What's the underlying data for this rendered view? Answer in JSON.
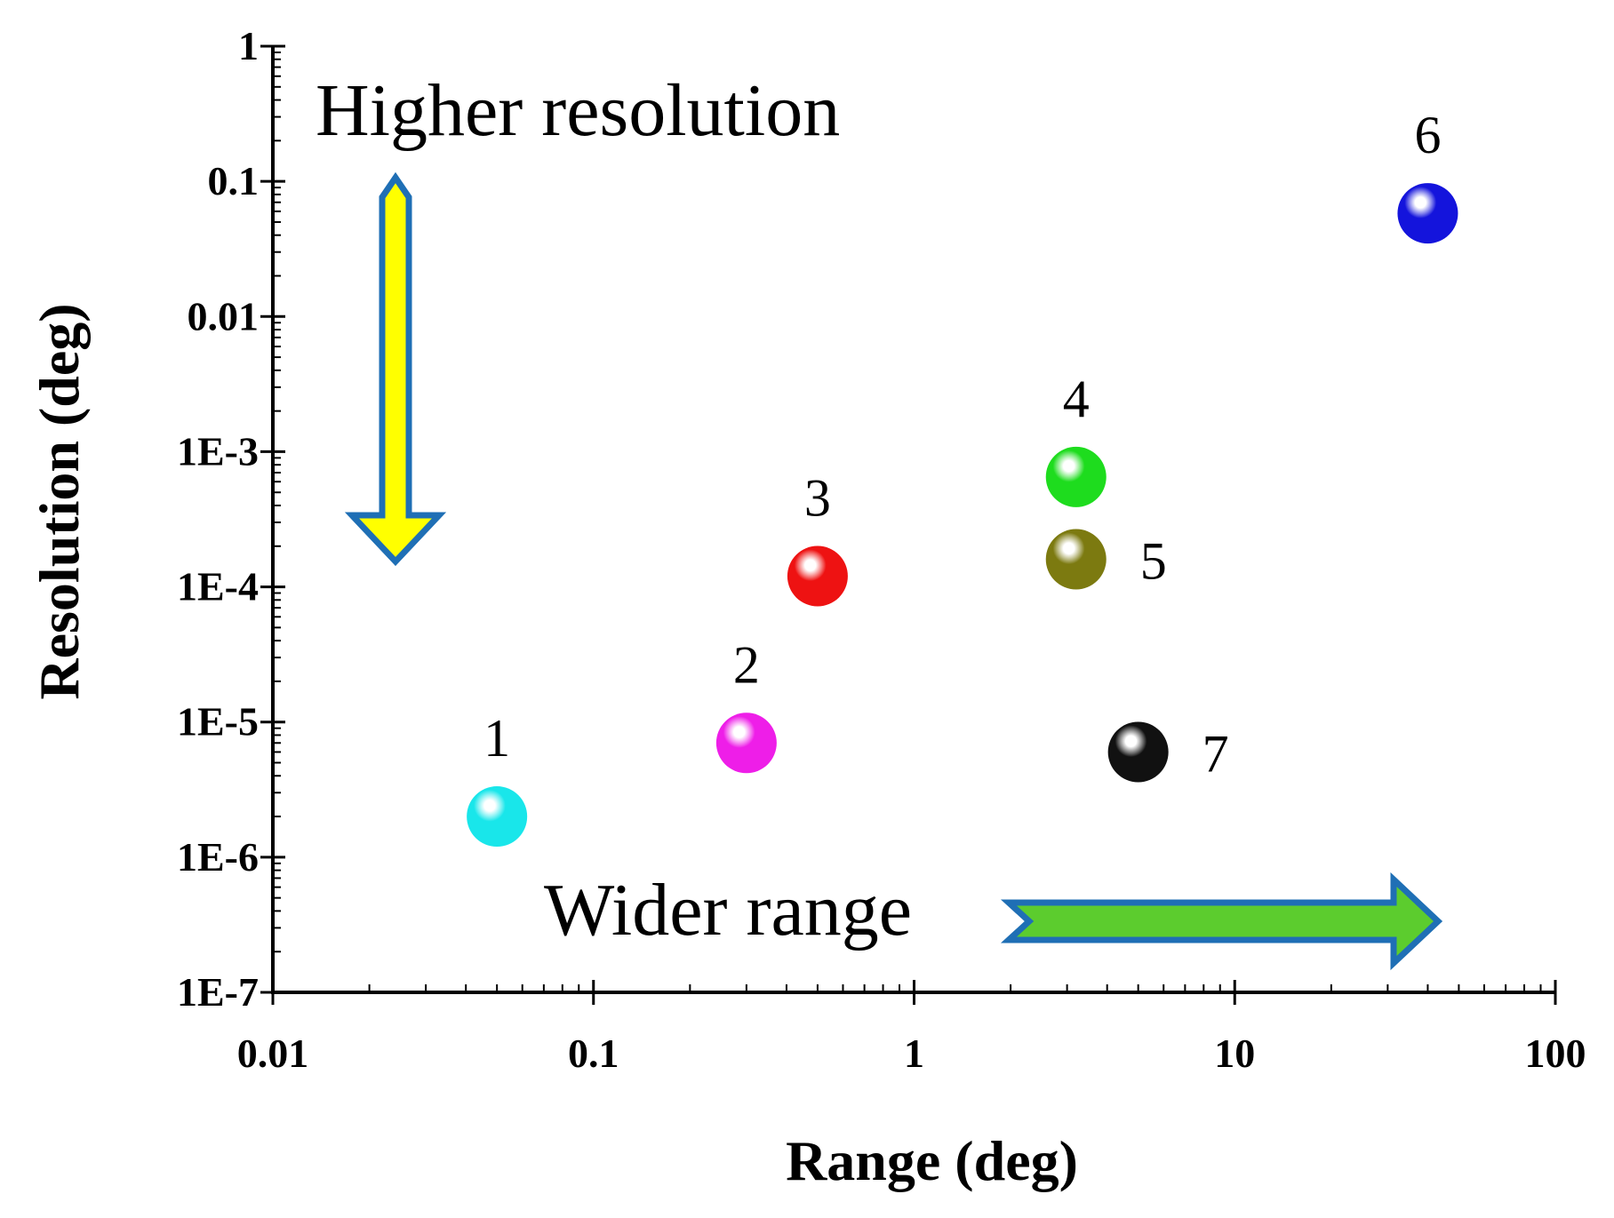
{
  "chart_data": {
    "type": "scatter",
    "xlabel": "Range (deg)",
    "ylabel": "Resolution (deg)",
    "xscale": "log",
    "yscale": "log",
    "xlim": [
      0.01,
      100
    ],
    "ylim": [
      1e-07,
      1
    ],
    "x_tick_values": [
      0.01,
      0.1,
      1,
      10,
      100
    ],
    "x_tick_labels": [
      "0.01",
      "0.1",
      "1",
      "10",
      "100"
    ],
    "y_tick_values": [
      1e-07,
      1e-06,
      1e-05,
      0.0001,
      0.001,
      0.01,
      0.1,
      1
    ],
    "y_tick_labels": [
      "1E-7",
      "1E-6",
      "1E-5",
      "1E-4",
      "1E-3",
      "0.01",
      "0.1",
      "1"
    ],
    "grid": false,
    "points": [
      {
        "label": "1",
        "x": 0.05,
        "y": 2e-06,
        "color": "#19e6ea",
        "label_side": "above"
      },
      {
        "label": "2",
        "x": 0.3,
        "y": 7e-06,
        "color": "#ee1ee8",
        "label_side": "above"
      },
      {
        "label": "3",
        "x": 0.5,
        "y": 0.00012,
        "color": "#ee1212",
        "label_side": "above"
      },
      {
        "label": "4",
        "x": 3.2,
        "y": 0.00065,
        "color": "#1edc1e",
        "label_side": "above"
      },
      {
        "label": "5",
        "x": 3.2,
        "y": 0.00016,
        "color": "#7c7a10",
        "label_side": "right"
      },
      {
        "label": "6",
        "x": 40,
        "y": 0.058,
        "color": "#1414dc",
        "label_side": "above"
      },
      {
        "label": "7",
        "x": 5,
        "y": 6e-06,
        "color": "#111111",
        "label_side": "right"
      }
    ],
    "annotations": [
      {
        "text": "Higher resolution",
        "arrow_direction": "down",
        "arrow_color": "#ffff00",
        "arrow_border": "#1f6fb5"
      },
      {
        "text": "Wider range",
        "arrow_direction": "right",
        "arrow_color": "#5ccc2e",
        "arrow_border": "#1f6fb5"
      }
    ]
  }
}
